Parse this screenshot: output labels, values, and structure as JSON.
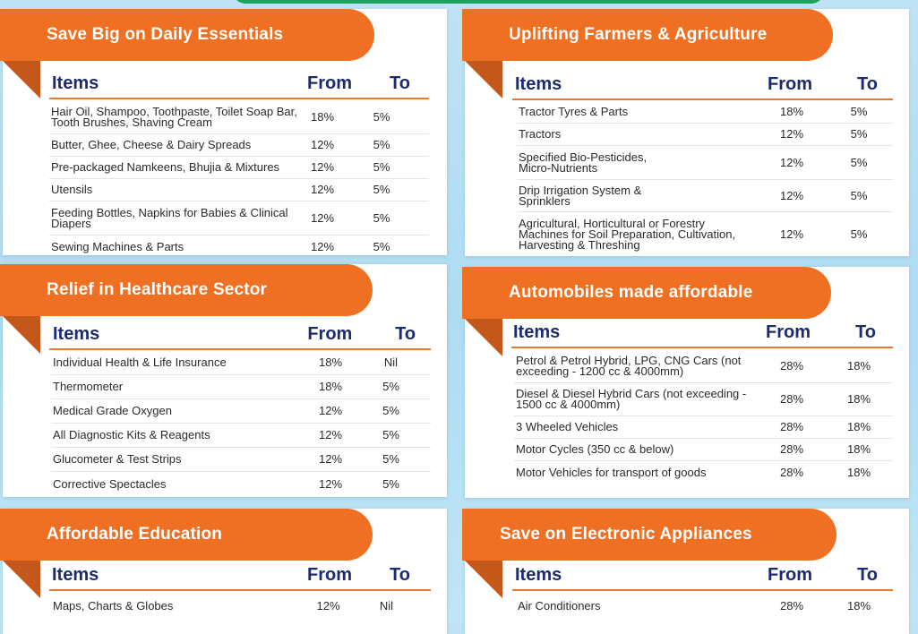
{
  "columns": {
    "items": "Items",
    "from": "From",
    "to": "To"
  },
  "sections": [
    {
      "title": "Save Big on Daily Essentials",
      "rows": [
        {
          "item": "Hair Oil, Shampoo, Toothpaste, Toilet Soap Bar, Tooth Brushes, Shaving Cream",
          "from": "18%",
          "to": "5%"
        },
        {
          "item": "Butter, Ghee, Cheese & Dairy Spreads",
          "from": "12%",
          "to": "5%"
        },
        {
          "item": "Pre-packaged Namkeens, Bhujia & Mixtures",
          "from": "12%",
          "to": "5%"
        },
        {
          "item": "Utensils",
          "from": "12%",
          "to": "5%"
        },
        {
          "item": "Feeding Bottles, Napkins for Babies & Clinical Diapers",
          "from": "12%",
          "to": "5%"
        },
        {
          "item": "Sewing Machines & Parts",
          "from": "12%",
          "to": "5%"
        }
      ]
    },
    {
      "title": "Uplifting Farmers & Agriculture",
      "rows": [
        {
          "item": "Tractor Tyres & Parts",
          "from": "18%",
          "to": "5%"
        },
        {
          "item": "Tractors",
          "from": "12%",
          "to": "5%"
        },
        {
          "item": "Specified Bio-Pesticides, Micro-Nutrients",
          "from": "12%",
          "to": "5%"
        },
        {
          "item": "Drip Irrigation System & Sprinklers",
          "from": "12%",
          "to": "5%"
        },
        {
          "item": "Agricultural, Horticultural or Forestry Machines for Soil Preparation, Cultivation, Harvesting & Threshing",
          "from": "12%",
          "to": "5%"
        }
      ]
    },
    {
      "title": "Relief in Healthcare Sector",
      "rows": [
        {
          "item": "Individual Health & Life Insurance",
          "from": "18%",
          "to": "Nil"
        },
        {
          "item": "Thermometer",
          "from": "18%",
          "to": "5%"
        },
        {
          "item": "Medical Grade Oxygen",
          "from": "12%",
          "to": "5%"
        },
        {
          "item": "All Diagnostic Kits & Reagents",
          "from": "12%",
          "to": "5%"
        },
        {
          "item": "Glucometer & Test Strips",
          "from": "12%",
          "to": "5%"
        },
        {
          "item": "Corrective Spectacles",
          "from": "12%",
          "to": "5%"
        }
      ]
    },
    {
      "title": "Automobiles made affordable",
      "rows": [
        {
          "item": "Petrol & Petrol Hybrid, LPG, CNG Cars (not exceeding - 1200 cc & 4000mm)",
          "from": "28%",
          "to": "18%"
        },
        {
          "item": "Diesel & Diesel Hybrid Cars (not exceeding - 1500 cc & 4000mm)",
          "from": "28%",
          "to": "18%"
        },
        {
          "item": "3 Wheeled Vehicles",
          "from": "28%",
          "to": "18%"
        },
        {
          "item": "Motor Cycles (350 cc & below)",
          "from": "28%",
          "to": "18%"
        },
        {
          "item": "Motor Vehicles for transport of goods",
          "from": "28%",
          "to": "18%"
        }
      ]
    },
    {
      "title": "Affordable Education",
      "rows": [
        {
          "item": "Maps, Charts & Globes",
          "from": "12%",
          "to": "Nil"
        }
      ]
    },
    {
      "title": "Save on Electronic Appliances",
      "rows": [
        {
          "item": "Air Conditioners",
          "from": "28%",
          "to": "18%"
        }
      ]
    }
  ]
}
